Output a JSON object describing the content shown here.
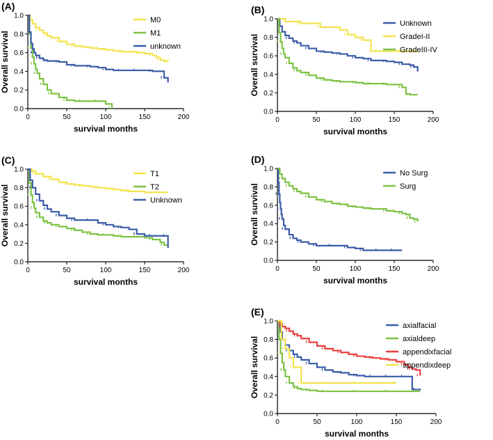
{
  "chart_data": [
    {
      "panel": "(A)",
      "type": "line",
      "xlabel": "survival months",
      "ylabel": "Overall survival",
      "xlim": [
        0,
        200
      ],
      "ylim": [
        0,
        1.0
      ],
      "xticks": [
        0,
        50,
        100,
        150,
        200
      ],
      "yticks": [
        0.0,
        0.2,
        0.4,
        0.6,
        0.8,
        1.0
      ],
      "legend_position": "top-right",
      "series": [
        {
          "name": "M0",
          "color": "#f2e34c",
          "x": [
            0,
            3,
            6,
            10,
            15,
            20,
            25,
            30,
            40,
            50,
            60,
            70,
            80,
            90,
            100,
            110,
            120,
            130,
            140,
            150,
            160,
            165,
            170,
            175,
            180
          ],
          "y": [
            1.0,
            0.95,
            0.91,
            0.87,
            0.84,
            0.81,
            0.78,
            0.76,
            0.72,
            0.69,
            0.67,
            0.66,
            0.65,
            0.64,
            0.63,
            0.62,
            0.61,
            0.61,
            0.6,
            0.59,
            0.57,
            0.55,
            0.52,
            0.51,
            0.5
          ]
        },
        {
          "name": "M1",
          "color": "#7cc242",
          "x": [
            0,
            2,
            4,
            6,
            8,
            10,
            12,
            15,
            20,
            25,
            30,
            40,
            50,
            60,
            70,
            80,
            90,
            100,
            108
          ],
          "y": [
            1.0,
            0.8,
            0.65,
            0.55,
            0.48,
            0.42,
            0.38,
            0.32,
            0.26,
            0.2,
            0.16,
            0.12,
            0.09,
            0.08,
            0.08,
            0.08,
            0.08,
            0.05,
            0.0
          ]
        },
        {
          "name": "unknown",
          "color": "#3a5ba8",
          "x": [
            0,
            2,
            4,
            6,
            8,
            10,
            15,
            20,
            25,
            30,
            40,
            50,
            60,
            70,
            80,
            90,
            100,
            110,
            120,
            130,
            140,
            150,
            160,
            170,
            175,
            180
          ],
          "y": [
            1.0,
            0.82,
            0.7,
            0.64,
            0.6,
            0.57,
            0.54,
            0.52,
            0.51,
            0.51,
            0.5,
            0.47,
            0.46,
            0.46,
            0.45,
            0.44,
            0.42,
            0.41,
            0.41,
            0.41,
            0.41,
            0.41,
            0.4,
            0.4,
            0.33,
            0.28
          ]
        }
      ]
    },
    {
      "panel": "(B)",
      "type": "line",
      "xlabel": "survival months",
      "ylabel": "Overall survival",
      "xlim": [
        0,
        200
      ],
      "ylim": [
        0,
        1.0
      ],
      "xticks": [
        0,
        50,
        100,
        150,
        200
      ],
      "yticks": [
        0.0,
        0.2,
        0.4,
        0.6,
        0.8,
        1.0
      ],
      "legend_position": "top-right",
      "series": [
        {
          "name": "Unknown",
          "color": "#3a5ba8",
          "x": [
            0,
            3,
            6,
            10,
            15,
            20,
            25,
            30,
            40,
            50,
            60,
            70,
            80,
            90,
            100,
            110,
            120,
            130,
            140,
            150,
            160,
            170,
            175,
            180
          ],
          "y": [
            1.0,
            0.92,
            0.86,
            0.82,
            0.79,
            0.76,
            0.74,
            0.71,
            0.68,
            0.65,
            0.64,
            0.63,
            0.62,
            0.6,
            0.58,
            0.57,
            0.55,
            0.55,
            0.54,
            0.53,
            0.51,
            0.5,
            0.48,
            0.43
          ]
        },
        {
          "name": "GradeI-II",
          "color": "#f2e34c",
          "x": [
            0,
            10,
            30,
            50,
            55,
            80,
            90,
            100,
            110,
            120,
            130,
            150,
            160,
            170,
            180
          ],
          "y": [
            1.0,
            0.97,
            0.95,
            0.95,
            0.91,
            0.88,
            0.83,
            0.8,
            0.77,
            0.65,
            0.65,
            0.65,
            0.65,
            0.65,
            0.65
          ]
        },
        {
          "name": "GradeIII-IV",
          "color": "#7cc242",
          "x": [
            0,
            2,
            4,
            6,
            8,
            10,
            15,
            20,
            25,
            30,
            40,
            50,
            60,
            70,
            80,
            90,
            100,
            110,
            120,
            130,
            140,
            150,
            160,
            165,
            170,
            180
          ],
          "y": [
            1.0,
            0.85,
            0.75,
            0.68,
            0.62,
            0.58,
            0.52,
            0.47,
            0.44,
            0.42,
            0.39,
            0.36,
            0.34,
            0.33,
            0.32,
            0.32,
            0.31,
            0.3,
            0.3,
            0.3,
            0.29,
            0.29,
            0.26,
            0.19,
            0.18,
            0.18
          ]
        }
      ]
    },
    {
      "panel": "(C)",
      "type": "line",
      "xlabel": "survival months",
      "ylabel": "Overall survival",
      "xlim": [
        0,
        200
      ],
      "ylim": [
        0,
        1.0
      ],
      "xticks": [
        0,
        50,
        100,
        150,
        200
      ],
      "yticks": [
        0.0,
        0.2,
        0.4,
        0.6,
        0.8,
        1.0
      ],
      "legend_position": "top-right",
      "series": [
        {
          "name": "T1",
          "color": "#f2e34c",
          "x": [
            0,
            5,
            10,
            20,
            30,
            40,
            50,
            60,
            70,
            80,
            90,
            100,
            110,
            120,
            130,
            140,
            150,
            160,
            170,
            180
          ],
          "y": [
            1.0,
            0.98,
            0.95,
            0.92,
            0.89,
            0.86,
            0.84,
            0.83,
            0.82,
            0.81,
            0.8,
            0.79,
            0.78,
            0.77,
            0.76,
            0.76,
            0.75,
            0.75,
            0.75,
            0.75
          ]
        },
        {
          "name": "T2",
          "color": "#7cc242",
          "x": [
            0,
            2,
            4,
            6,
            8,
            10,
            15,
            20,
            25,
            30,
            40,
            50,
            60,
            70,
            80,
            90,
            100,
            110,
            120,
            130,
            140,
            150,
            160,
            170,
            175,
            180
          ],
          "y": [
            1.0,
            0.85,
            0.72,
            0.64,
            0.58,
            0.53,
            0.48,
            0.44,
            0.42,
            0.4,
            0.38,
            0.36,
            0.34,
            0.32,
            0.3,
            0.29,
            0.29,
            0.28,
            0.27,
            0.27,
            0.27,
            0.26,
            0.24,
            0.21,
            0.18,
            0.15
          ]
        },
        {
          "name": "Unknown",
          "color": "#3a5ba8",
          "x": [
            0,
            3,
            6,
            10,
            15,
            20,
            25,
            30,
            40,
            50,
            60,
            70,
            80,
            90,
            100,
            110,
            120,
            130,
            140,
            150,
            160,
            170,
            178,
            180
          ],
          "y": [
            1.0,
            0.88,
            0.8,
            0.73,
            0.66,
            0.61,
            0.57,
            0.54,
            0.5,
            0.47,
            0.45,
            0.45,
            0.45,
            0.42,
            0.4,
            0.38,
            0.37,
            0.35,
            0.3,
            0.28,
            0.28,
            0.28,
            0.28,
            0.15
          ]
        }
      ]
    },
    {
      "panel": "(D)",
      "type": "line",
      "xlabel": "survival months",
      "ylabel": "Overall survival",
      "xlim": [
        0,
        200
      ],
      "ylim": [
        0,
        1.0
      ],
      "xticks": [
        0,
        50,
        100,
        150,
        200
      ],
      "yticks": [
        0.0,
        0.2,
        0.4,
        0.6,
        0.8,
        1.0
      ],
      "legend_position": "top-right",
      "series": [
        {
          "name": "No Surg",
          "color": "#3a5ba8",
          "x": [
            0,
            1,
            2,
            3,
            4,
            5,
            6,
            8,
            10,
            15,
            20,
            25,
            30,
            40,
            50,
            60,
            70,
            80,
            90,
            100,
            110,
            120,
            130,
            140,
            150,
            160
          ],
          "y": [
            1.0,
            0.85,
            0.72,
            0.63,
            0.56,
            0.5,
            0.45,
            0.38,
            0.34,
            0.28,
            0.24,
            0.22,
            0.2,
            0.18,
            0.16,
            0.16,
            0.16,
            0.16,
            0.14,
            0.13,
            0.11,
            0.11,
            0.11,
            0.11,
            0.11,
            0.11
          ]
        },
        {
          "name": "Surg",
          "color": "#7cc242",
          "x": [
            0,
            3,
            6,
            10,
            15,
            20,
            25,
            30,
            40,
            50,
            60,
            70,
            80,
            90,
            100,
            110,
            120,
            130,
            140,
            150,
            160,
            165,
            170,
            175,
            180
          ],
          "y": [
            1.0,
            0.94,
            0.89,
            0.85,
            0.81,
            0.78,
            0.75,
            0.73,
            0.69,
            0.66,
            0.64,
            0.62,
            0.61,
            0.59,
            0.58,
            0.57,
            0.56,
            0.56,
            0.54,
            0.53,
            0.51,
            0.5,
            0.46,
            0.45,
            0.42
          ]
        }
      ]
    },
    {
      "panel": "(E)",
      "type": "line",
      "xlabel": "survival months",
      "ylabel": "Overall survival",
      "xlim": [
        0,
        200
      ],
      "ylim": [
        0,
        1.0
      ],
      "xticks": [
        0,
        50,
        100,
        150,
        200
      ],
      "yticks": [
        0.0,
        0.2,
        0.4,
        0.6,
        0.8,
        1.0
      ],
      "legend_position": "top-right",
      "series": [
        {
          "name": "axialfacial",
          "color": "#3a5ba8",
          "x": [
            0,
            3,
            6,
            10,
            15,
            20,
            25,
            30,
            40,
            50,
            60,
            70,
            80,
            90,
            100,
            110,
            120,
            130,
            140,
            150,
            160,
            170,
            175,
            180
          ],
          "y": [
            1.0,
            0.88,
            0.8,
            0.74,
            0.68,
            0.64,
            0.61,
            0.58,
            0.54,
            0.5,
            0.47,
            0.45,
            0.44,
            0.42,
            0.41,
            0.4,
            0.4,
            0.4,
            0.4,
            0.4,
            0.4,
            0.26,
            0.26,
            0.27
          ]
        },
        {
          "name": "axialdeep",
          "color": "#7cc242",
          "x": [
            0,
            2,
            4,
            6,
            8,
            10,
            15,
            20,
            25,
            30,
            40,
            50,
            60,
            80,
            100,
            120,
            140,
            160,
            180
          ],
          "y": [
            1.0,
            0.8,
            0.65,
            0.55,
            0.47,
            0.4,
            0.33,
            0.29,
            0.27,
            0.26,
            0.25,
            0.24,
            0.24,
            0.24,
            0.24,
            0.24,
            0.24,
            0.24,
            0.24
          ]
        },
        {
          "name": "appendixfacial",
          "color": "#e8403f",
          "x": [
            0,
            3,
            6,
            10,
            15,
            20,
            25,
            30,
            40,
            50,
            60,
            70,
            80,
            90,
            100,
            110,
            120,
            130,
            140,
            150,
            160,
            165,
            170,
            175,
            180
          ],
          "y": [
            1.0,
            0.97,
            0.94,
            0.92,
            0.89,
            0.86,
            0.84,
            0.81,
            0.77,
            0.73,
            0.7,
            0.68,
            0.66,
            0.64,
            0.62,
            0.61,
            0.6,
            0.59,
            0.58,
            0.56,
            0.53,
            0.5,
            0.48,
            0.47,
            0.41
          ]
        },
        {
          "name": "appendixdeep",
          "color": "#f2e34c",
          "x": [
            0,
            5,
            10,
            15,
            20,
            25,
            30,
            40,
            60,
            80,
            100,
            120,
            150
          ],
          "y": [
            1.0,
            0.8,
            0.7,
            0.6,
            0.5,
            0.5,
            0.33,
            0.33,
            0.33,
            0.33,
            0.33,
            0.33,
            0.33
          ]
        }
      ]
    }
  ]
}
